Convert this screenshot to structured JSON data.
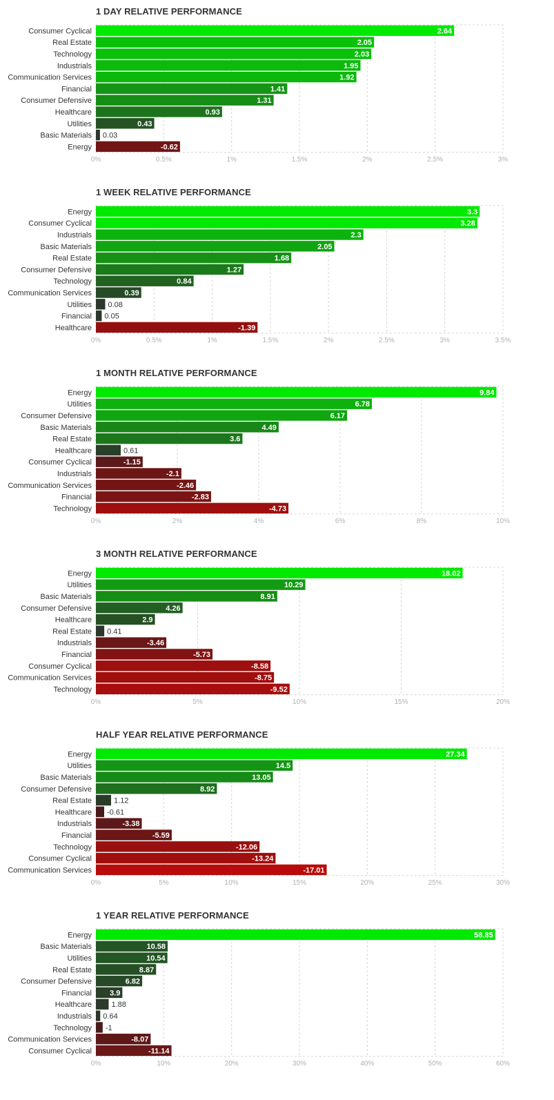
{
  "chart_data": [
    {
      "type": "bar",
      "orientation": "horizontal",
      "title": "1 DAY RELATIVE PERFORMANCE",
      "categories": [
        "Consumer Cyclical",
        "Real Estate",
        "Technology",
        "Industrials",
        "Communication Services",
        "Financial",
        "Consumer Defensive",
        "Healthcare",
        "Utilities",
        "Basic Materials",
        "Energy"
      ],
      "values": [
        2.64,
        2.05,
        2.03,
        1.95,
        1.92,
        1.41,
        1.31,
        0.93,
        0.43,
        0.03,
        -0.62
      ],
      "value_labels": [
        "2.64",
        "2.05",
        "2.03",
        "1.95",
        "1.92",
        "1.41",
        "1.31",
        "0.93",
        "0.43",
        "0.03",
        "-0.62"
      ],
      "xlim": [
        0,
        3
      ],
      "xticks": [
        0,
        0.5,
        1,
        1.5,
        2,
        2.5,
        3
      ],
      "xtick_labels": [
        "0%",
        "0.5%",
        "1%",
        "1.5%",
        "2%",
        "2.5%",
        "3%"
      ]
    },
    {
      "type": "bar",
      "orientation": "horizontal",
      "title": "1 WEEK RELATIVE PERFORMANCE",
      "categories": [
        "Energy",
        "Consumer Cyclical",
        "Industrials",
        "Basic Materials",
        "Real Estate",
        "Consumer Defensive",
        "Technology",
        "Communication Services",
        "Utilities",
        "Financial",
        "Healthcare"
      ],
      "values": [
        3.3,
        3.28,
        2.3,
        2.05,
        1.68,
        1.27,
        0.84,
        0.39,
        0.08,
        0.05,
        -1.39
      ],
      "value_labels": [
        "3.3",
        "3.28",
        "2.3",
        "2.05",
        "1.68",
        "1.27",
        "0.84",
        "0.39",
        "0.08",
        "0.05",
        "-1.39"
      ],
      "xlim": [
        0,
        3.5
      ],
      "xticks": [
        0,
        0.5,
        1,
        1.5,
        2,
        2.5,
        3,
        3.5
      ],
      "xtick_labels": [
        "0%",
        "0.5%",
        "1%",
        "1.5%",
        "2%",
        "2.5%",
        "3%",
        "3.5%"
      ]
    },
    {
      "type": "bar",
      "orientation": "horizontal",
      "title": "1 MONTH RELATIVE PERFORMANCE",
      "categories": [
        "Energy",
        "Utilities",
        "Consumer Defensive",
        "Basic Materials",
        "Real Estate",
        "Healthcare",
        "Consumer Cyclical",
        "Industrials",
        "Communication Services",
        "Financial",
        "Technology"
      ],
      "values": [
        9.84,
        6.78,
        6.17,
        4.49,
        3.6,
        0.61,
        -1.15,
        -2.1,
        -2.46,
        -2.83,
        -4.73
      ],
      "value_labels": [
        "9.84",
        "6.78",
        "6.17",
        "4.49",
        "3.6",
        "0.61",
        "-1.15",
        "-2.1",
        "-2.46",
        "-2.83",
        "-4.73"
      ],
      "xlim": [
        0,
        10
      ],
      "xticks": [
        0,
        2,
        4,
        6,
        8,
        10
      ],
      "xtick_labels": [
        "0%",
        "2%",
        "4%",
        "6%",
        "8%",
        "10%"
      ]
    },
    {
      "type": "bar",
      "orientation": "horizontal",
      "title": "3 MONTH RELATIVE PERFORMANCE",
      "categories": [
        "Energy",
        "Utilities",
        "Basic Materials",
        "Consumer Defensive",
        "Healthcare",
        "Real Estate",
        "Industrials",
        "Financial",
        "Consumer Cyclical",
        "Communication Services",
        "Technology"
      ],
      "values": [
        18.02,
        10.29,
        8.91,
        4.26,
        2.9,
        0.41,
        -3.46,
        -5.73,
        -8.58,
        -8.75,
        -9.52
      ],
      "value_labels": [
        "18.02",
        "10.29",
        "8.91",
        "4.26",
        "2.9",
        "0.41",
        "-3.46",
        "-5.73",
        "-8.58",
        "-8.75",
        "-9.52"
      ],
      "xlim": [
        0,
        20
      ],
      "xticks": [
        0,
        5,
        10,
        15,
        20
      ],
      "xtick_labels": [
        "0%",
        "5%",
        "10%",
        "15%",
        "20%"
      ]
    },
    {
      "type": "bar",
      "orientation": "horizontal",
      "title": "HALF YEAR RELATIVE PERFORMANCE",
      "categories": [
        "Energy",
        "Utilities",
        "Basic Materials",
        "Consumer Defensive",
        "Real Estate",
        "Healthcare",
        "Industrials",
        "Financial",
        "Technology",
        "Consumer Cyclical",
        "Communication Services"
      ],
      "values": [
        27.34,
        14.5,
        13.05,
        8.92,
        1.12,
        -0.61,
        -3.38,
        -5.59,
        -12.06,
        -13.24,
        -17.01
      ],
      "value_labels": [
        "27.34",
        "14.5",
        "13.05",
        "8.92",
        "1.12",
        "-0.61",
        "-3.38",
        "-5.59",
        "-12.06",
        "-13.24",
        "-17.01"
      ],
      "xlim": [
        0,
        30
      ],
      "xticks": [
        0,
        5,
        10,
        15,
        20,
        25,
        30
      ],
      "xtick_labels": [
        "0%",
        "5%",
        "10%",
        "15%",
        "20%",
        "25%",
        "30%"
      ]
    },
    {
      "type": "bar",
      "orientation": "horizontal",
      "title": "1 YEAR RELATIVE PERFORMANCE",
      "categories": [
        "Energy",
        "Basic Materials",
        "Utilities",
        "Real Estate",
        "Consumer Defensive",
        "Financial",
        "Healthcare",
        "Industrials",
        "Technology",
        "Communication Services",
        "Consumer Cyclical"
      ],
      "values": [
        58.85,
        10.58,
        10.54,
        8.87,
        6.82,
        3.9,
        1.88,
        0.64,
        -1,
        -8.07,
        -11.14
      ],
      "value_labels": [
        "58.85",
        "10.58",
        "10.54",
        "8.87",
        "6.82",
        "3.9",
        "1.88",
        "0.64",
        "-1",
        "-8.07",
        "-11.14"
      ],
      "xlim": [
        0,
        60
      ],
      "xticks": [
        0,
        10,
        20,
        30,
        40,
        50,
        60
      ],
      "xtick_labels": [
        "0%",
        "10%",
        "20%",
        "30%",
        "40%",
        "50%",
        "60%"
      ]
    }
  ]
}
